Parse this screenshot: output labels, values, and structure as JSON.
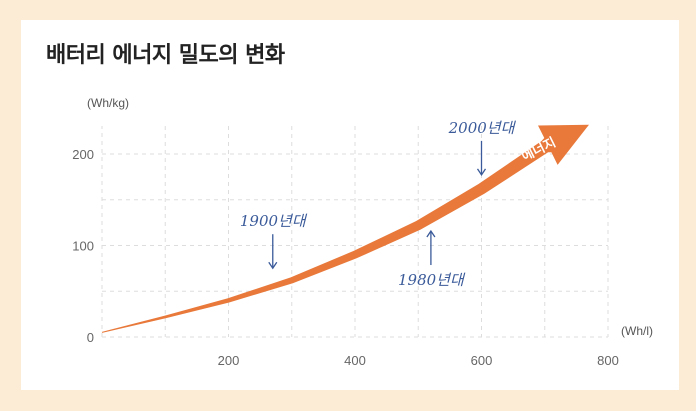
{
  "title": "배터리 에너지 밀도의 변화",
  "chart_data": {
    "type": "line",
    "title": "배터리 에너지 밀도의 변화",
    "xlabel": "(Wh/l)",
    "ylabel": "(Wh/kg)",
    "xlim": [
      0,
      800
    ],
    "ylim": [
      0,
      200
    ],
    "x_ticks": [
      200,
      400,
      600,
      800
    ],
    "y_ticks": [
      0,
      100,
      200
    ],
    "grid": true,
    "series": [
      {
        "name": "에너지",
        "points": [
          [
            0,
            5
          ],
          [
            100,
            22
          ],
          [
            200,
            40
          ],
          [
            300,
            62
          ],
          [
            400,
            90
          ],
          [
            500,
            122
          ],
          [
            600,
            162
          ],
          [
            700,
            208
          ],
          [
            770,
            232
          ]
        ]
      }
    ],
    "annotations": [
      {
        "text": "1900년대",
        "x": 270,
        "y": 73,
        "pointer": "down"
      },
      {
        "text": "1980년대",
        "x": 520,
        "y": 118,
        "pointer": "up"
      },
      {
        "text": "2000년대",
        "x": 600,
        "y": 175,
        "pointer": "down"
      }
    ]
  },
  "colors": {
    "background": "#fcecd6",
    "card": "#ffffff",
    "arrow": "#e8793b",
    "grid": "#dddddd",
    "annotation": "#3a5a99"
  }
}
